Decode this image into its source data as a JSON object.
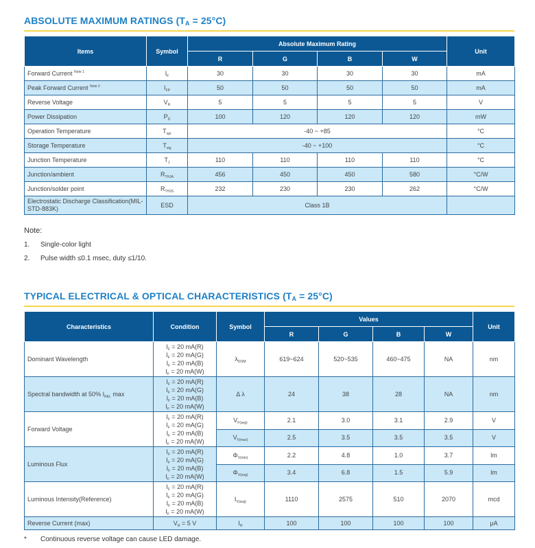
{
  "amr": {
    "title": "ABSOLUTE MAXIMUM RATINGS (T",
    "title_sub": "A",
    "title_end": " = 25°C)",
    "headers": {
      "items": "Items",
      "symbol": "Symbol",
      "rating": "Absolute Maximum Rating",
      "unit": "Unit",
      "cols": [
        "R",
        "G",
        "B",
        "W"
      ]
    },
    "rows": [
      {
        "item": "Forward Current",
        "note": "Note 1",
        "sym": "I",
        "sub": "F",
        "vals": [
          "30",
          "30",
          "30",
          "30"
        ],
        "unit": "mA"
      },
      {
        "item": "Peak Forward Current",
        "note": "Note 2",
        "sym": "I",
        "sub": "FP",
        "vals": [
          "50",
          "50",
          "50",
          "50"
        ],
        "unit": "mA"
      },
      {
        "item": "Reverse Voltage",
        "sym": "V",
        "sub": "R",
        "vals": [
          "5",
          "5",
          "5",
          "5"
        ],
        "unit": "V"
      },
      {
        "item": "Power Dissipation",
        "sym": "P",
        "sub": "D",
        "vals": [
          "100",
          "120",
          "120",
          "120"
        ],
        "unit": "mW"
      },
      {
        "item": "Operation Temperature",
        "sym": "T",
        "sub": "opr",
        "span": "-40 ~ +85",
        "unit": "°C"
      },
      {
        "item": "Storage Temperature",
        "sym": "T",
        "sub": "stg",
        "span": "-40 ~ +100",
        "unit": "°C"
      },
      {
        "item": "Junction Temperature",
        "sym": "T",
        "sub": "J",
        "vals": [
          "110",
          "110",
          "110",
          "110"
        ],
        "unit": "°C"
      },
      {
        "item": "Junction/ambient",
        "sym": "R",
        "sub": "THJA",
        "vals": [
          "456",
          "450",
          "450",
          "580"
        ],
        "unit": "°C/W"
      },
      {
        "item": "Junction/solder point",
        "sym": "R",
        "sub": "THJS",
        "vals": [
          "232",
          "230",
          "230",
          "262"
        ],
        "unit": "°C/W"
      },
      {
        "item": "Electrostatic Discharge Classification(MIL-STD-883K)",
        "sym": "ESD",
        "sub": "",
        "span": "Class 1B",
        "unit": ""
      }
    ]
  },
  "notes": {
    "heading": "Note:",
    "items": [
      {
        "n": "1.",
        "text": "Single-color light"
      },
      {
        "n": "2.",
        "text": "Pulse width ≤0.1 msec, duty ≤1/10."
      }
    ]
  },
  "eoc": {
    "title": "TYPICAL ELECTRICAL & OPTICAL CHARACTERISTICS (T",
    "title_sub": "A",
    "title_end": " = 25°C)",
    "headers": {
      "char": "Characteristics",
      "cond": "Condition",
      "symbol": "Symbol",
      "values": "Values",
      "unit": "Unit",
      "cols": [
        "R",
        "G",
        "B",
        "W"
      ]
    },
    "cond_lines": [
      "I|F| = 20 mA(R)",
      "I|F| = 20 mA(G)",
      "I|F| = 20 mA(B)",
      "I|F| = 20 mA(W)"
    ],
    "rows": [
      {
        "char": "Dominant Wavelength",
        "subs": [
          {
            "sym": "λ",
            "sub": "DOM",
            "vals": [
              "619~624",
              "520~535",
              "460~475",
              "NA"
            ],
            "unit": "nm"
          }
        ]
      },
      {
        "char": "Spectral bandwidth at 50% I",
        "char_sub": "REL",
        "char_end": " max",
        "subs": [
          {
            "sym": "Δ λ",
            "sub": "",
            "vals": [
              "24",
              "38",
              "28",
              "NA"
            ],
            "unit": "nm"
          }
        ]
      },
      {
        "char": "Forward Voltage",
        "subs": [
          {
            "sym": "V",
            "sub": "F(avg)",
            "vals": [
              "2.1",
              "3.0",
              "3.1",
              "2.9"
            ],
            "unit": "V"
          },
          {
            "sym": "V",
            "sub": "F(max)",
            "vals": [
              "2.5",
              "3.5",
              "3.5",
              "3.5"
            ],
            "unit": "V"
          }
        ]
      },
      {
        "char": "Luminous Flux",
        "subs": [
          {
            "sym": "Φ",
            "sub": "V(min)",
            "vals": [
              "2.2",
              "4.8",
              "1.0",
              "3.7"
            ],
            "unit": "lm"
          },
          {
            "sym": "Φ",
            "sub": "V(avg)",
            "vals": [
              "3.4",
              "6.8",
              "1.5",
              "5.9"
            ],
            "unit": "lm"
          }
        ]
      },
      {
        "char": "Luminous Intensity(Reference)",
        "subs": [
          {
            "sym": "I",
            "sub": "V(avg)",
            "vals": [
              "1110",
              "2575",
              "510",
              "2070"
            ],
            "unit": "mcd"
          }
        ]
      },
      {
        "char": "Reverse Current (max)",
        "cond": "V|R| = 5 V",
        "subs": [
          {
            "sym": "I",
            "sub": "R",
            "vals": [
              "100",
              "100",
              "100",
              "100"
            ],
            "unit": "μA"
          }
        ]
      }
    ]
  },
  "footnote": {
    "mark": "*",
    "text": "Continuous reverse voltage can cause LED damage."
  },
  "colors": {
    "header": "#0b5894",
    "stripe": "#cae8f8",
    "title": "#1e80c6",
    "rule": "#f5d54a"
  }
}
